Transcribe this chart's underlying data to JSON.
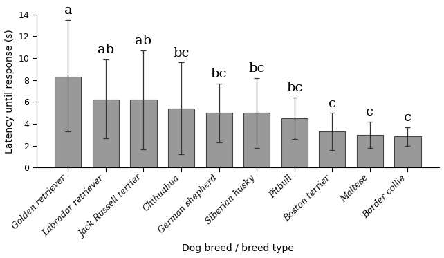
{
  "categories": [
    "Golden retriever",
    "Labrador retriever",
    "Jack Russell terrier",
    "Chihuahua",
    "German shepherd",
    "Siberian husky",
    "Pitbull",
    "Boston terrier",
    "Maltese",
    "Border collie"
  ],
  "values": [
    8.3,
    6.2,
    6.2,
    5.4,
    5.0,
    5.0,
    4.5,
    3.3,
    3.0,
    2.85
  ],
  "errors_upper": [
    5.2,
    3.7,
    4.5,
    4.2,
    2.7,
    3.2,
    1.9,
    1.7,
    1.2,
    0.85
  ],
  "errors_lower": [
    5.0,
    3.5,
    4.5,
    4.2,
    2.7,
    3.2,
    1.9,
    1.7,
    1.2,
    0.85
  ],
  "significance": [
    "a",
    "ab",
    "ab",
    "bc",
    "bc",
    "bc",
    "bc",
    "c",
    "c",
    "c"
  ],
  "bar_color": "#999999",
  "bar_edgecolor": "#444444",
  "ylabel": "Latency until response (s)",
  "xlabel": "Dog breed / breed type",
  "ylim": [
    0,
    14
  ],
  "yticks": [
    0,
    2,
    4,
    6,
    8,
    10,
    12,
    14
  ],
  "sig_fontsize": 14,
  "label_fontsize": 10,
  "tick_fontsize": 9,
  "xtick_fontsize": 9,
  "bar_width": 0.7,
  "figsize": [
    6.42,
    3.73
  ],
  "dpi": 100
}
